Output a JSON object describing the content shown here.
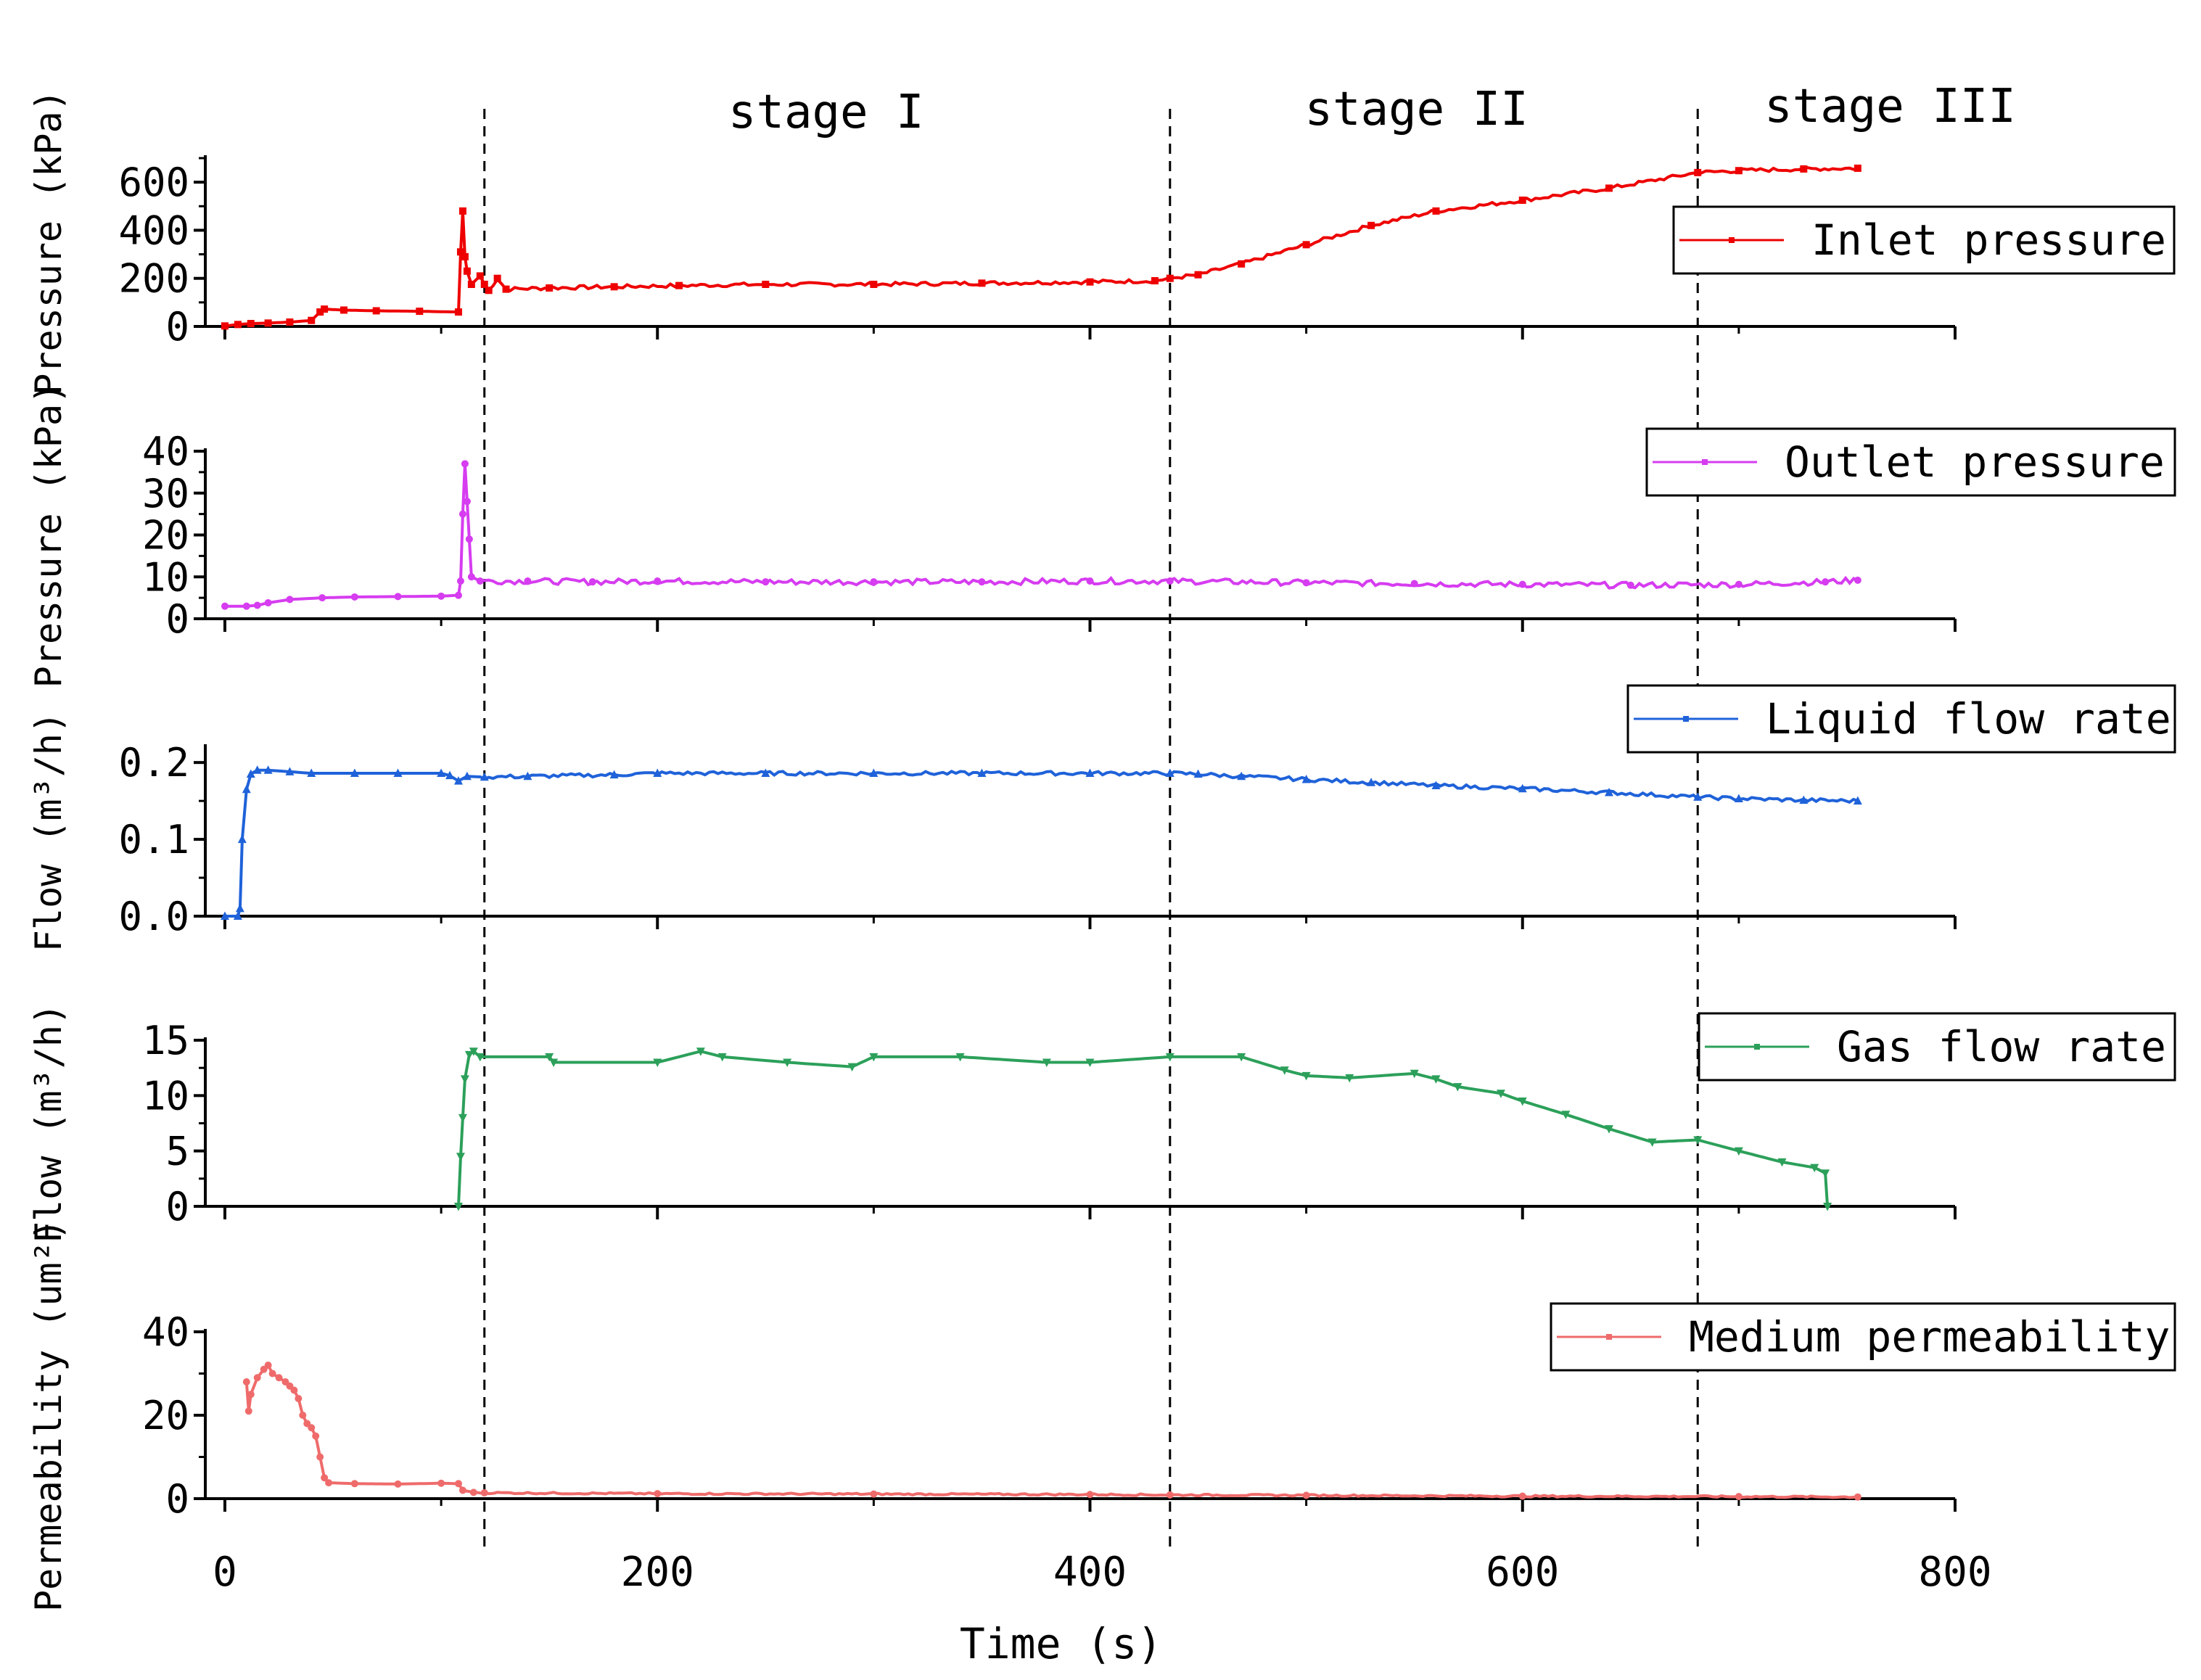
{
  "chart_data": {
    "type": "line",
    "xlabel": "Time (s)",
    "xlim": [
      0,
      800
    ],
    "xticks": [
      0,
      200,
      400,
      600,
      800
    ],
    "stage_boundaries": [
      120,
      437,
      681
    ],
    "stages": [
      {
        "label": "stage I",
        "x_center": 278
      },
      {
        "label": "stage II",
        "x_center": 551
      },
      {
        "label": "stage III",
        "x_center": 770
      }
    ],
    "panels": [
      {
        "id": "inlet",
        "ylabel": "Pressure (kPa)",
        "ylim": [
          0,
          700
        ],
        "yticks": [
          0,
          200,
          400,
          600
        ],
        "tick_labels": [
          "0",
          "200",
          "400",
          "600"
        ],
        "series": {
          "name": "Inlet pressure",
          "color": "#ee0000",
          "marker": "square",
          "x": [
            0,
            6,
            12,
            20,
            30,
            40,
            44,
            46,
            55,
            70,
            90,
            108,
            109,
            110,
            111,
            112,
            114,
            118,
            120,
            122,
            126,
            130,
            150,
            180,
            210,
            250,
            300,
            350,
            400,
            430,
            437,
            450,
            470,
            500,
            530,
            560,
            600,
            640,
            681,
            700,
            730,
            755
          ],
          "y": [
            2,
            8,
            12,
            14,
            18,
            25,
            60,
            72,
            68,
            65,
            63,
            60,
            310,
            480,
            290,
            230,
            175,
            210,
            175,
            150,
            200,
            155,
            160,
            165,
            170,
            175,
            175,
            180,
            185,
            190,
            200,
            215,
            260,
            340,
            420,
            480,
            525,
            575,
            640,
            648,
            655,
            658
          ]
        }
      },
      {
        "id": "outlet",
        "ylabel": "Pressure (kPa)",
        "ylim": [
          0,
          40
        ],
        "yticks": [
          0,
          10,
          20,
          30,
          40
        ],
        "tick_labels": [
          "0",
          "10",
          "20",
          "30",
          "40"
        ],
        "series": {
          "name": "Outlet pressure",
          "color": "#d63cf0",
          "marker": "dot",
          "x": [
            0,
            10,
            15,
            20,
            30,
            45,
            60,
            80,
            100,
            108,
            109,
            110,
            111,
            112,
            113,
            114,
            118,
            140,
            170,
            200,
            250,
            300,
            350,
            400,
            437,
            500,
            550,
            600,
            650,
            700,
            740,
            755
          ],
          "y": [
            3,
            3,
            3.2,
            3.8,
            4.6,
            5,
            5.2,
            5.3,
            5.4,
            5.6,
            9,
            25,
            37,
            28,
            19,
            10,
            9,
            9,
            8.8,
            9,
            8.8,
            8.8,
            8.8,
            9,
            9,
            8.6,
            8.4,
            8.2,
            8,
            8.2,
            8.8,
            9.2
          ]
        }
      },
      {
        "id": "liquid",
        "ylabel": "Flow (m³/h)",
        "ylim": [
          0,
          0.22
        ],
        "yticks": [
          0,
          0.1,
          0.2
        ],
        "tick_labels": [
          "0.0",
          "0.1",
          "0.2"
        ],
        "series": {
          "name": "Liquid flow rate",
          "color": "#1f62d9",
          "marker": "triangle-up",
          "x": [
            0,
            6,
            7,
            8,
            10,
            12,
            15,
            20,
            30,
            40,
            60,
            80,
            100,
            104,
            108,
            112,
            120,
            140,
            180,
            200,
            250,
            300,
            350,
            400,
            437,
            450,
            470,
            500,
            530,
            560,
            600,
            640,
            681,
            700,
            730,
            755
          ],
          "y": [
            0,
            0,
            0.01,
            0.1,
            0.165,
            0.185,
            0.19,
            0.19,
            0.188,
            0.186,
            0.186,
            0.186,
            0.186,
            0.183,
            0.176,
            0.182,
            0.181,
            0.182,
            0.184,
            0.186,
            0.186,
            0.186,
            0.186,
            0.186,
            0.186,
            0.185,
            0.182,
            0.178,
            0.174,
            0.17,
            0.166,
            0.161,
            0.155,
            0.153,
            0.151,
            0.15
          ]
        }
      },
      {
        "id": "gas",
        "ylabel": "Flow (m³/h)",
        "ylim": [
          0,
          15
        ],
        "yticks": [
          0,
          5,
          10,
          15
        ],
        "tick_labels": [
          "0",
          "5",
          "10",
          "15"
        ],
        "series": {
          "name": "Gas flow rate",
          "color": "#2ca05a",
          "marker": "triangle-down",
          "x": [
            108,
            109,
            110,
            111,
            113,
            115,
            118,
            150,
            152,
            200,
            220,
            230,
            260,
            290,
            300,
            340,
            380,
            400,
            437,
            470,
            490,
            500,
            520,
            550,
            560,
            570,
            590,
            600,
            620,
            640,
            660,
            681,
            700,
            720,
            735,
            740,
            741
          ],
          "y": [
            0,
            4.5,
            8,
            11.5,
            13.7,
            14,
            13.5,
            13.5,
            13,
            13,
            14,
            13.5,
            13,
            12.6,
            13.5,
            13.5,
            13,
            13,
            13.5,
            13.5,
            12.3,
            11.8,
            11.6,
            12,
            11.5,
            10.8,
            10.2,
            9.5,
            8.3,
            7,
            5.8,
            6,
            5,
            4,
            3.5,
            3,
            0
          ]
        }
      },
      {
        "id": "perm",
        "ylabel": "Permeability (um²)",
        "ylim": [
          0,
          40
        ],
        "yticks": [
          0,
          20,
          40
        ],
        "tick_labels": [
          "0",
          "20",
          "40"
        ],
        "series": {
          "name": "Medium permeability",
          "color": "#ef6b6b",
          "marker": "dot",
          "x": [
            10,
            11,
            12,
            15,
            18,
            20,
            22,
            25,
            28,
            30,
            32,
            34,
            36,
            38,
            40,
            42,
            44,
            46,
            48,
            60,
            80,
            100,
            108,
            110,
            115,
            120,
            200,
            300,
            400,
            437,
            500,
            600,
            700,
            755
          ],
          "y": [
            28,
            21,
            25,
            29,
            31,
            32,
            30,
            29,
            28,
            27,
            26,
            24,
            20,
            18,
            17,
            15,
            10,
            5,
            3.8,
            3.6,
            3.5,
            3.7,
            3.6,
            2,
            1.5,
            1.4,
            1.2,
            1.1,
            1,
            0.9,
            0.8,
            0.6,
            0.5,
            0.4
          ]
        }
      }
    ]
  }
}
